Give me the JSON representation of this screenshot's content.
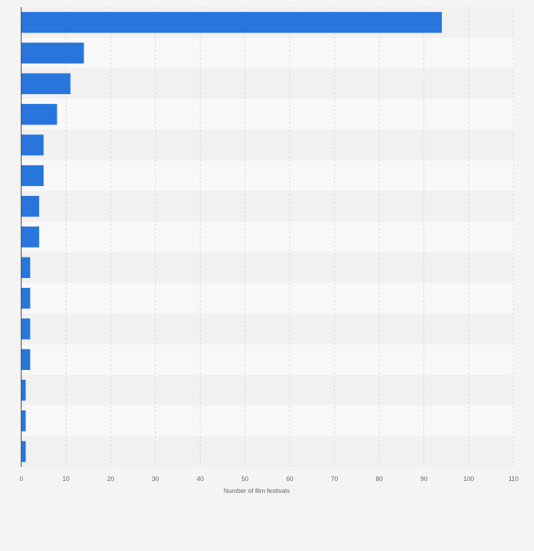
{
  "chart_data": {
    "type": "bar",
    "orientation": "horizontal",
    "categories": [
      "",
      "",
      "",
      "",
      "",
      "",
      "",
      "",
      "",
      "",
      "",
      "",
      "",
      "",
      ""
    ],
    "values": [
      94,
      14,
      11,
      8,
      5,
      5,
      4,
      4,
      2,
      2,
      2,
      2,
      1,
      1,
      1
    ],
    "xlabel": "Number of film festivals",
    "ylabel": "",
    "xlim": [
      0,
      110
    ],
    "xticks": [
      0,
      10,
      20,
      30,
      40,
      50,
      60,
      70,
      80,
      90,
      100,
      110
    ],
    "grid": true,
    "legend": "none",
    "colors": {
      "bar": "#2876dd",
      "background": "#f4f4f4",
      "band_dark": "#f1f1f1",
      "band_light": "#f8f8f8",
      "grid": "#d6d6d6",
      "axis": "#333333",
      "text": "#666666"
    }
  }
}
